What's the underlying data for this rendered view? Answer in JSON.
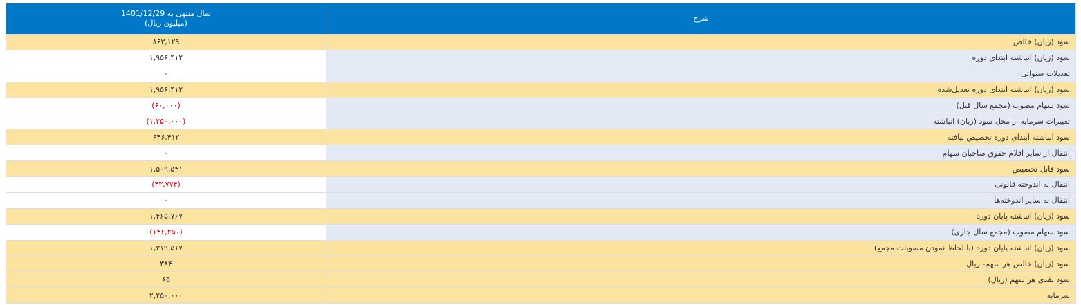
{
  "table": {
    "header": {
      "period": "سال منتهی به 1401/12/29",
      "unit": "(میلیون ریال)",
      "description": "شرح"
    },
    "rows": [
      {
        "label": "سود (زیان) خالص",
        "value": "۸۶۳,۱۲۹",
        "highlight": true
      },
      {
        "label": "سود (زیان) انباشته ابتدای دوره",
        "value": "۱,۹۵۶,۴۱۲",
        "highlight": false
      },
      {
        "label": "تعدیلات سنواتی",
        "value": "۰",
        "highlight": false
      },
      {
        "label": "سود (زیان) انباشته ابتدای دوره تعدیل‌شده",
        "value": "۱,۹۵۶,۴۱۲",
        "highlight": true
      },
      {
        "label": "سود سهام مصوب (مجمع سال قبل)",
        "value": "(۶۰,۰۰۰)",
        "highlight": false
      },
      {
        "label": "تغییرات سرمایه از محل سود (زیان) انباشته",
        "value": "(۱,۲۵۰,۰۰۰)",
        "highlight": false
      },
      {
        "label": "سود انباشته ابتدای دوره تخصیص نیافته",
        "value": "۶۴۶,۴۱۲",
        "highlight": true
      },
      {
        "label": "انتقال از سایر اقلام حقوق صاحبان سهام",
        "value": "۰",
        "highlight": false
      },
      {
        "label": "سود قابل تخصیص",
        "value": "۱,۵۰۹,۵۴۱",
        "highlight": true
      },
      {
        "label": "انتقال به اندوخته قانونی",
        "value": "(۴۳,۷۷۴)",
        "highlight": false
      },
      {
        "label": "انتقال به سایر اندوخته‌ها",
        "value": "۰",
        "highlight": false
      },
      {
        "label": "سود (زیان) انباشته پایان دوره",
        "value": "۱,۴۶۵,۷۶۷",
        "highlight": true
      },
      {
        "label": "سود سهام مصوب (مجمع سال جاری)",
        "value": "(۱۴۶,۲۵۰)",
        "highlight": false
      },
      {
        "label": "سود (زیان) انباشته پایان دوره (با لحاظ نمودن مصوبات مجمع)",
        "value": "۱,۳۱۹,۵۱۷",
        "highlight": true
      },
      {
        "label": "سود (زیان) خالص هر سهم- ریال",
        "value": "۳۸۴",
        "highlight": true
      },
      {
        "label": "سود نقدی هر سهم (ریال)",
        "value": "۶۵",
        "highlight": true
      },
      {
        "label": "سرمایه",
        "value": "۲,۲۵۰,۰۰۰",
        "highlight": true
      }
    ]
  }
}
